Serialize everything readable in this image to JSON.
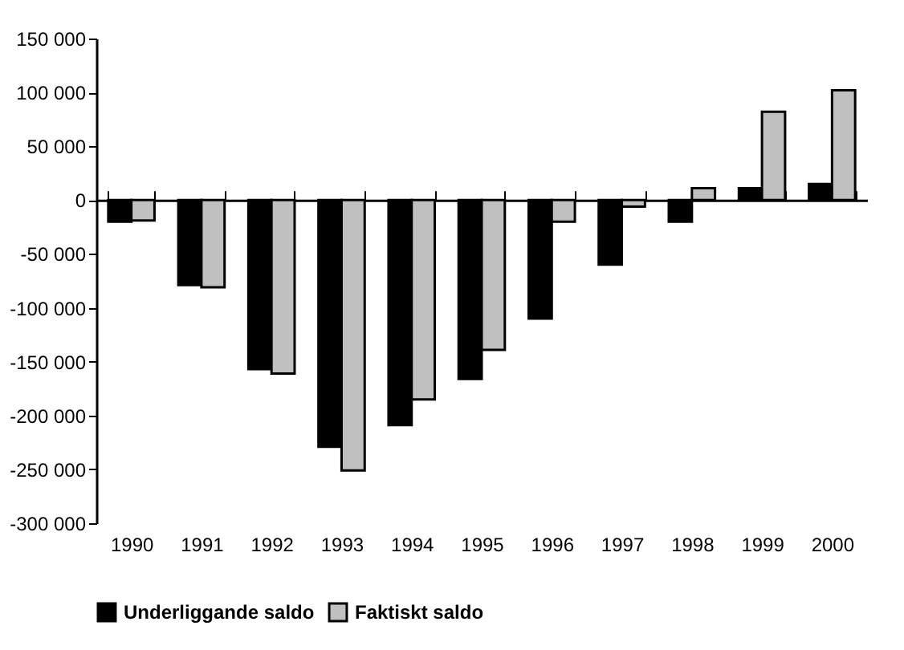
{
  "chart_data": {
    "type": "bar",
    "categories": [
      "1990",
      "1991",
      "1992",
      "1993",
      "1994",
      "1995",
      "1996",
      "1997",
      "1998",
      "1999",
      "2000"
    ],
    "series": [
      {
        "name": "Underliggande saldo",
        "color": "#000000",
        "values": [
          -20000,
          -79000,
          -157000,
          -229000,
          -209000,
          -166000,
          -110000,
          -60000,
          -20000,
          11000,
          15000
        ]
      },
      {
        "name": "Faktiskt saldo",
        "color": "#c0c0c0",
        "values": [
          -19000,
          -81000,
          -161000,
          -251000,
          -185000,
          -139000,
          -20000,
          -6000,
          11000,
          82000,
          102000
        ]
      }
    ],
    "ylim": [
      -300000,
      150000
    ],
    "yticks": [
      {
        "value": -300000,
        "label": "-300 000"
      },
      {
        "value": -250000,
        "label": "-250 000"
      },
      {
        "value": -200000,
        "label": "-200 000"
      },
      {
        "value": -150000,
        "label": "-150 000"
      },
      {
        "value": -100000,
        "label": "-100 000"
      },
      {
        "value": -50000,
        "label": "-50 000"
      },
      0,
      {
        "value": 50000,
        "label": "50 000"
      },
      {
        "value": 100000,
        "label": "100 000"
      },
      {
        "value": 150000,
        "label": "150 000"
      }
    ],
    "legend": "bottom"
  }
}
